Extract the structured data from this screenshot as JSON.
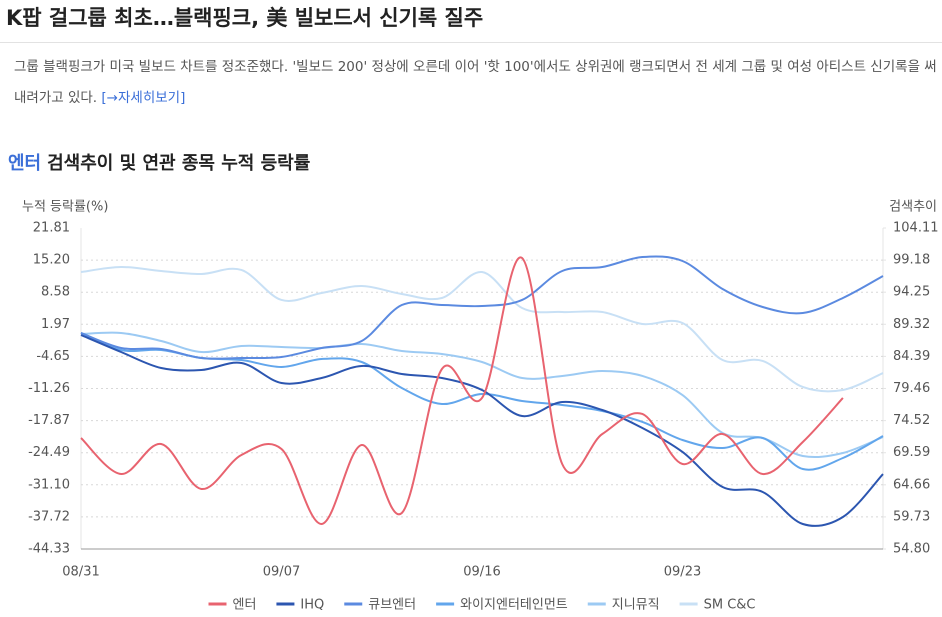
{
  "header": {
    "title": "K팝 걸그룹 최초…블랙핑크, 美 빌보드서 신기록 질주",
    "summary": "그룹 블랙핑크가 미국 빌보드 차트를 정조준했다. '빌보드 200' 정상에 오른데 이어 '핫 100'에서도 상위권에 랭크되면서 전 세계 그룹 및 여성 아티스트 신기록을 써내려가고 있다.",
    "link": "[→자세히보기]"
  },
  "chart_data": {
    "type": "line",
    "title_keyword": "엔터",
    "title": "검색추이 및 연관 종목 누적 등락률",
    "y_label": "누적 등락률(%)",
    "y2_label": "검색추이",
    "categories": [
      "08/31",
      null,
      null,
      null,
      null,
      "09/07",
      null,
      null,
      null,
      null,
      "09/16",
      null,
      null,
      null,
      null,
      "09/23",
      null,
      null,
      null,
      null,
      null
    ],
    "ylim": [
      -44.33,
      21.81
    ],
    "yticks": [
      21.81,
      {
        "value": 15.2,
        "label": "15.20"
      },
      8.58,
      1.97,
      -4.65,
      -11.26,
      -17.87,
      -24.49,
      {
        "value": -31.1,
        "label": "-31.10"
      },
      -37.72,
      -44.33
    ],
    "y2lim": [
      54.8,
      104.11
    ],
    "y2ticks": [
      104.11,
      99.18,
      94.25,
      89.32,
      84.39,
      79.46,
      74.52,
      69.59,
      64.66,
      59.73,
      {
        "value": 54.8,
        "label": "54.80"
      }
    ],
    "grid": true,
    "legend": "bottom",
    "series": [
      {
        "name": "엔터",
        "color": "#e8636f",
        "axis": "y2",
        "values": [
          71.85,
          66.32,
          70.93,
          64.02,
          69.24,
          70.16,
          58.64,
          70.78,
          60.33,
          82.45,
          78.0,
          99.5,
          67.86,
          72.47,
          75.54,
          67.86,
          72.47,
          66.32,
          71.24,
          78.0,
          null
        ]
      },
      {
        "name": "IHQ",
        "color": "#2c56b0",
        "values": [
          -0.24,
          -3.74,
          -7.04,
          -7.45,
          -6.01,
          -10.13,
          -9.1,
          -6.62,
          -8.27,
          -9.1,
          -11.57,
          -16.93,
          -14.04,
          -15.69,
          -19.4,
          -24.34,
          -31.55,
          -32.58,
          -39.18,
          -37.74,
          -28.88
        ]
      },
      {
        "name": "큐브엔터",
        "color": "#5b8ae0",
        "values": [
          0.18,
          -2.91,
          -3.12,
          -4.98,
          -4.98,
          -4.77,
          -2.91,
          -1.47,
          5.94,
          5.94,
          5.74,
          6.98,
          12.95,
          13.77,
          15.83,
          15.01,
          9.24,
          5.53,
          4.3,
          7.39,
          11.92
        ]
      },
      {
        "name": "와이지엔터테인먼트",
        "color": "#62a6ec",
        "values": [
          0.18,
          -3.33,
          -3.33,
          -4.98,
          -5.39,
          -6.83,
          -5.18,
          -5.8,
          -11.16,
          -14.45,
          -12.39,
          -13.83,
          -14.66,
          -15.9,
          -18.16,
          -21.87,
          -23.52,
          -21.46,
          -27.85,
          -25.58,
          -21.05
        ]
      },
      {
        "name": "지니뮤직",
        "color": "#9ccaf3",
        "values": [
          -0.03,
          0.18,
          -1.47,
          -3.74,
          -2.5,
          -2.71,
          -2.91,
          -2.09,
          -3.53,
          -4.15,
          -5.8,
          -9.1,
          -8.68,
          -7.65,
          -8.68,
          -12.6,
          -20.43,
          -21.46,
          -25.17,
          -24.55,
          -21.25
        ]
      },
      {
        "name": "SM C&C",
        "color": "#c8e0f5",
        "values": [
          12.74,
          13.77,
          12.95,
          12.33,
          13.16,
          6.98,
          8.42,
          9.86,
          8.21,
          7.39,
          12.74,
          5.33,
          4.5,
          4.5,
          2.03,
          2.24,
          -5.39,
          -5.59,
          -10.95,
          -11.57,
          -8.07
        ]
      }
    ]
  }
}
